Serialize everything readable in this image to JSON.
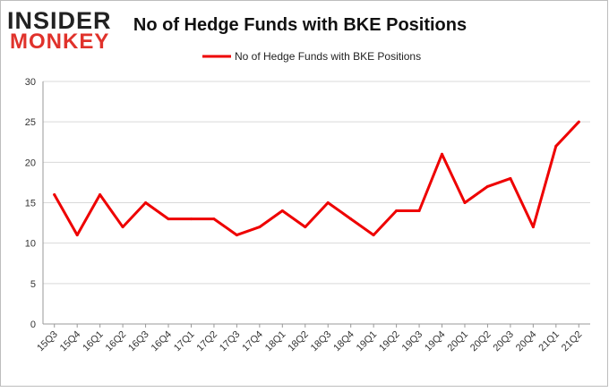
{
  "logo": {
    "line1": "INSIDER",
    "line2": "MONKEY"
  },
  "colors": {
    "series": "#ee0000",
    "grid": "#d9d9d9",
    "axis": "#999999",
    "frame": "#bdbdbd",
    "logo_dark": "#222222",
    "logo_red": "#e0322b"
  },
  "chart_data": {
    "type": "line",
    "title": "No of Hedge Funds with BKE Positions",
    "xlabel": "",
    "ylabel": "",
    "ylim": [
      0,
      30
    ],
    "yticks": [
      "0",
      "5",
      "10",
      "15",
      "20",
      "25",
      "30"
    ],
    "grid": true,
    "legend_position": "top",
    "categories": [
      "15Q3",
      "15Q4",
      "16Q1",
      "16Q2",
      "16Q3",
      "16Q4",
      "17Q1",
      "17Q2",
      "17Q3",
      "17Q4",
      "18Q1",
      "18Q2",
      "18Q3",
      "18Q4",
      "19Q1",
      "19Q2",
      "19Q3",
      "19Q4",
      "20Q1",
      "20Q2",
      "20Q3",
      "20Q4",
      "21Q1",
      "21Q2"
    ],
    "series": [
      {
        "name": "No of Hedge Funds with BKE Positions",
        "values": [
          16,
          11,
          16,
          12,
          15,
          13,
          13,
          13,
          11,
          12,
          14,
          12,
          15,
          13,
          11,
          14,
          14,
          21,
          15,
          17,
          18,
          12,
          22,
          25
        ]
      }
    ]
  }
}
